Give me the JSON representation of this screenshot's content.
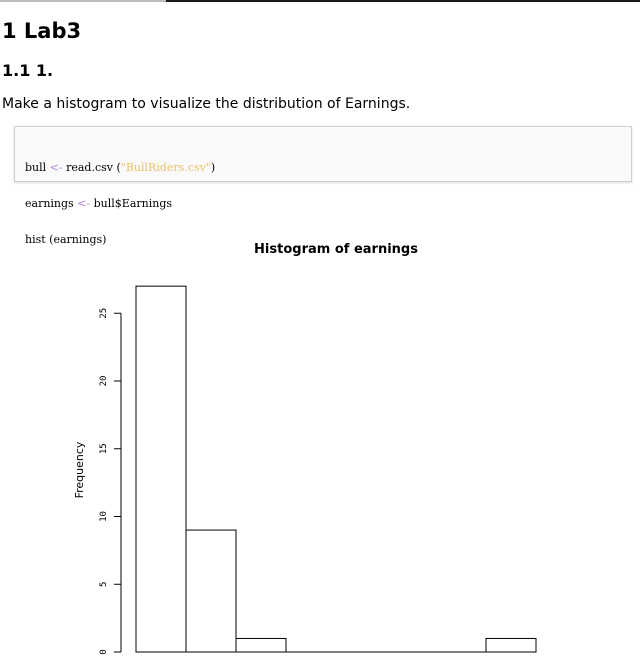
{
  "doc": {
    "title": "1 Lab3",
    "subtitle": "1.1 1.",
    "intro": "Make a histogram to visualize the distribution of Earnings."
  },
  "code": {
    "lines": [
      [
        {
          "t": "bull ",
          "k": "plain"
        },
        {
          "t": "<-",
          "k": "op"
        },
        {
          "t": " read.csv (",
          "k": "plain"
        },
        {
          "t": "\"BullRiders.csv\"",
          "k": "str"
        },
        {
          "t": ")",
          "k": "plain"
        }
      ],
      [
        {
          "t": "earnings ",
          "k": "plain"
        },
        {
          "t": "<-",
          "k": "op"
        },
        {
          "t": " bull$Earnings",
          "k": "plain"
        }
      ],
      [
        {
          "t": "hist (earnings)",
          "k": "plain"
        }
      ]
    ]
  },
  "chart_data": {
    "type": "bar",
    "title": "Histogram of earnings",
    "xlabel": "",
    "ylabel": "Frequency",
    "bins": 8,
    "values": [
      27,
      9,
      1,
      0,
      0,
      0,
      0,
      1
    ],
    "yticks": [
      "0",
      "5",
      "10",
      "15",
      "20",
      "25"
    ],
    "ylim": [
      0,
      27
    ],
    "grid": false
  }
}
